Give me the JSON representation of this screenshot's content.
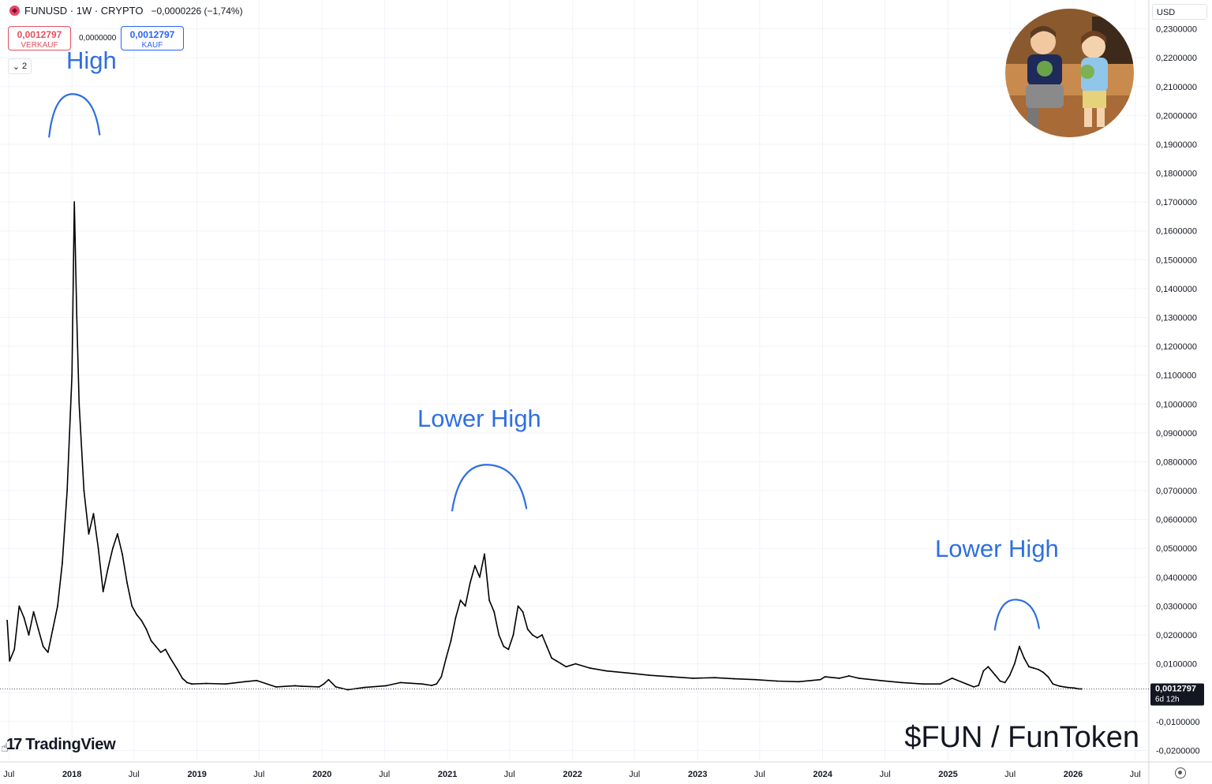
{
  "header": {
    "title": "FUNUSD · 1W · CRYPTO",
    "change": "−0,0000226 (−1,74%)",
    "sell_value": "0,0012797",
    "sell_label": "VERKAUF",
    "spread": "0,0000000",
    "buy_value": "0,0012797",
    "buy_label": "KAUF",
    "collapse_count": "2"
  },
  "currency": "USD",
  "annotations": [
    "High",
    "Lower High",
    "Lower High"
  ],
  "watermark": "$FUN / FunToken",
  "brand": "TradingView",
  "last_price": {
    "value": "0,0012797",
    "countdown": "6d 12h"
  },
  "colors": {
    "annotation": "#2f6fe0",
    "sell": "#e4515f",
    "buy": "#2962ff",
    "candles": "#000000"
  },
  "chart_data": {
    "type": "line",
    "title": "",
    "xlabel": "",
    "ylabel": "",
    "x_ticks": [
      "Jul",
      "2018",
      "Jul",
      "2019",
      "Jul",
      "2020",
      "Jul",
      "2021",
      "Jul",
      "2022",
      "Jul",
      "2023",
      "Jul",
      "2024",
      "Jul",
      "2025",
      "Jul",
      "2026",
      "Jul"
    ],
    "y_ticks": [
      "0,2300000",
      "0,2200000",
      "0,2100000",
      "0,2000000",
      "0,1900000",
      "0,1800000",
      "0,1700000",
      "0,1600000",
      "0,1500000",
      "0,1400000",
      "0,1300000",
      "0,1200000",
      "0,1100000",
      "0,1000000",
      "0,0900000",
      "0,0800000",
      "0,0700000",
      "0,0600000",
      "0,0500000",
      "0,0400000",
      "0,0300000",
      "0,0200000",
      "0,0100000",
      "-0,0100000",
      "-0,0200000"
    ],
    "ylim": [
      -0.024,
      0.24
    ],
    "xlim": [
      "2017-06-05",
      "2026-08-10"
    ],
    "grid": true,
    "series": [
      {
        "x": [
          "2017-06-26",
          "2017-07-03",
          "2017-07-17",
          "2017-07-31",
          "2017-08-14",
          "2017-08-28",
          "2017-09-11",
          "2017-09-25",
          "2017-10-09",
          "2017-10-23",
          "2017-11-06",
          "2017-11-20",
          "2017-12-04",
          "2017-12-18",
          "2018-01-01",
          "2018-01-08",
          "2018-01-15",
          "2018-01-22",
          "2018-02-05",
          "2018-02-19",
          "2018-03-05",
          "2018-03-19",
          "2018-04-02",
          "2018-04-16",
          "2018-04-30",
          "2018-05-14",
          "2018-05-28",
          "2018-06-11",
          "2018-06-25",
          "2018-07-09",
          "2018-07-23",
          "2018-08-06",
          "2018-08-20",
          "2018-09-03",
          "2018-09-17",
          "2018-10-01",
          "2018-10-15",
          "2018-11-05",
          "2018-11-19",
          "2018-12-03",
          "2018-12-17",
          "2019-01-28",
          "2019-03-25",
          "2019-05-20",
          "2019-06-24",
          "2019-08-19",
          "2019-10-14",
          "2019-11-04",
          "2019-12-23",
          "2020-01-06",
          "2020-01-20",
          "2020-02-10",
          "2020-03-16",
          "2020-05-04",
          "2020-07-06",
          "2020-08-17",
          "2020-10-19",
          "2020-11-16",
          "2020-11-30",
          "2020-12-14",
          "2020-12-28",
          "2021-01-11",
          "2021-01-25",
          "2021-02-08",
          "2021-02-22",
          "2021-03-08",
          "2021-03-22",
          "2021-04-05",
          "2021-04-19",
          "2021-05-03",
          "2021-05-17",
          "2021-05-31",
          "2021-06-14",
          "2021-06-28",
          "2021-07-12",
          "2021-07-26",
          "2021-08-09",
          "2021-08-23",
          "2021-09-06",
          "2021-09-20",
          "2021-10-04",
          "2021-10-18",
          "2021-11-01",
          "2021-11-15",
          "2021-11-29",
          "2021-12-13",
          "2022-01-10",
          "2022-02-21",
          "2022-04-11",
          "2022-06-13",
          "2022-08-15",
          "2022-10-17",
          "2022-12-19",
          "2023-02-20",
          "2023-04-17",
          "2023-06-19",
          "2023-08-21",
          "2023-10-23",
          "2023-12-25",
          "2024-01-08",
          "2024-02-19",
          "2024-03-18",
          "2024-04-15",
          "2024-06-17",
          "2024-08-19",
          "2024-10-21",
          "2024-12-09",
          "2025-01-13",
          "2025-02-24",
          "2025-03-17",
          "2025-03-31",
          "2025-04-14",
          "2025-04-28",
          "2025-05-19",
          "2025-06-02",
          "2025-06-16",
          "2025-06-30",
          "2025-07-14",
          "2025-07-28",
          "2025-08-11",
          "2025-08-25",
          "2025-09-08",
          "2025-09-22",
          "2025-10-06",
          "2025-10-20",
          "2025-11-03",
          "2025-11-24",
          "2025-12-15",
          "2026-01-05",
          "2026-01-12",
          "2026-01-19",
          "2026-01-26"
        ],
        "y": [
          0.025,
          0.011,
          0.015,
          0.03,
          0.026,
          0.02,
          0.028,
          0.022,
          0.016,
          0.014,
          0.022,
          0.03,
          0.045,
          0.07,
          0.11,
          0.17,
          0.13,
          0.1,
          0.07,
          0.055,
          0.062,
          0.05,
          0.035,
          0.043,
          0.05,
          0.055,
          0.048,
          0.038,
          0.03,
          0.027,
          0.025,
          0.022,
          0.018,
          0.016,
          0.014,
          0.015,
          0.012,
          0.008,
          0.005,
          0.0035,
          0.003,
          0.0032,
          0.003,
          0.0038,
          0.0042,
          0.002,
          0.0024,
          0.0022,
          0.002,
          0.003,
          0.0045,
          0.002,
          0.001,
          0.0018,
          0.0024,
          0.0035,
          0.003,
          0.0025,
          0.003,
          0.0055,
          0.012,
          0.018,
          0.026,
          0.032,
          0.03,
          0.038,
          0.044,
          0.04,
          0.048,
          0.032,
          0.028,
          0.02,
          0.016,
          0.015,
          0.02,
          0.03,
          0.028,
          0.022,
          0.02,
          0.019,
          0.02,
          0.016,
          0.012,
          0.011,
          0.01,
          0.009,
          0.01,
          0.0085,
          0.0075,
          0.0068,
          0.006,
          0.0055,
          0.005,
          0.0052,
          0.0048,
          0.0045,
          0.004,
          0.0038,
          0.0045,
          0.0055,
          0.005,
          0.0058,
          0.005,
          0.0042,
          0.0035,
          0.003,
          0.003,
          0.005,
          0.003,
          0.002,
          0.0025,
          0.0075,
          0.009,
          0.006,
          0.004,
          0.0035,
          0.006,
          0.01,
          0.016,
          0.012,
          0.009,
          0.0085,
          0.008,
          0.007,
          0.0055,
          0.003,
          0.0022,
          0.0018,
          0.0016,
          0.0014,
          0.0013,
          0.0013
        ]
      }
    ],
    "last_value": 0.0012797,
    "annotation_marks": [
      {
        "label": "High",
        "x": "2018-01-08",
        "y": 0.2
      },
      {
        "label": "Lower High",
        "x": "2021-05-03",
        "y": 0.071
      },
      {
        "label": "Lower High",
        "x": "2025-07-21",
        "y": 0.027
      }
    ]
  }
}
